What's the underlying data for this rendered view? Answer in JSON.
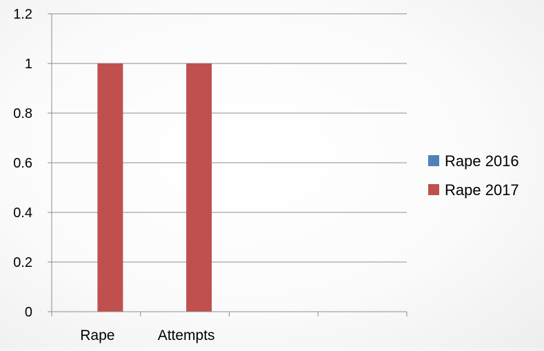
{
  "chart_data": {
    "type": "bar",
    "title": "",
    "xlabel": "",
    "ylabel": "",
    "categories": [
      "Rape",
      "Attempts",
      "",
      ""
    ],
    "series": [
      {
        "name": "Rape 2016",
        "color": "#4f81bd",
        "values": [
          0,
          0,
          null,
          null
        ]
      },
      {
        "name": "Rape 2017",
        "color": "#c0504d",
        "values": [
          1,
          1,
          null,
          null
        ]
      }
    ],
    "ylim": [
      0,
      1.2
    ],
    "yticks": [
      "0",
      "0.2",
      "0.4",
      "0.6",
      "0.8",
      "1",
      "1.2"
    ],
    "grid": true,
    "legend_position": "right"
  }
}
